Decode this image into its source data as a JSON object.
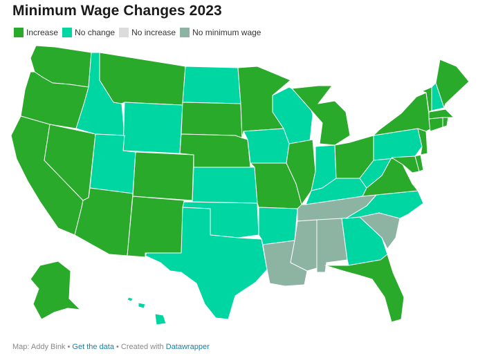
{
  "title": "Minimum Wage Changes 2023",
  "legend": [
    {
      "label": "Increase",
      "color": "#2aaa2a"
    },
    {
      "label": "No change",
      "color": "#00d6a2"
    },
    {
      "label": "No increase",
      "color": "#dcdcdc"
    },
    {
      "label": "No minimum wage",
      "color": "#8db3a2"
    }
  ],
  "colors": {
    "increase": "#2aaa2a",
    "no_change": "#00d6a2",
    "no_increase": "#dcdcdc",
    "no_minimum_wage": "#8db3a2"
  },
  "states": {
    "increase": [
      "WA",
      "OR",
      "CA",
      "NV",
      "AZ",
      "MT",
      "CO",
      "NM",
      "SD",
      "NE",
      "MN",
      "MI",
      "OH",
      "IL",
      "MO",
      "VA",
      "MD",
      "DE",
      "NJ",
      "NY",
      "CT",
      "RI",
      "MA",
      "VT",
      "ME",
      "FL",
      "AK"
    ],
    "no_change": [
      "ID",
      "UT",
      "WY",
      "ND",
      "KS",
      "OK",
      "TX",
      "IA",
      "WI",
      "IN",
      "KY",
      "WV",
      "PA",
      "NC",
      "GA",
      "AR",
      "NH",
      "HI"
    ],
    "no_minimum_wage": [
      "TN",
      "MS",
      "AL",
      "LA",
      "SC"
    ]
  },
  "footer": {
    "prefix": "Map: Addy Bink •",
    "data_link": "Get the data",
    "mid": "• Created with",
    "tool_link": "Datawrapper"
  }
}
